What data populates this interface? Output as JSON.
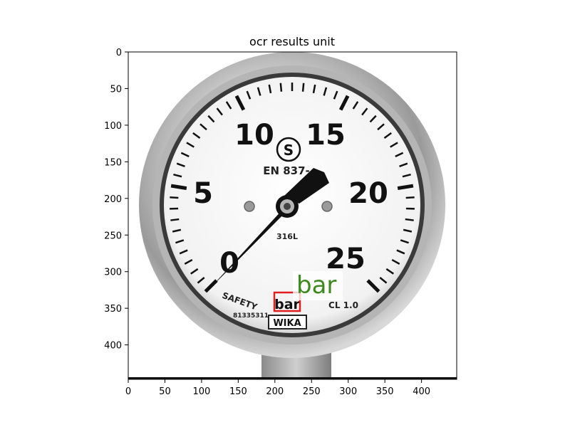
{
  "figure": {
    "title": "ocr results unit",
    "x_ticks": [
      "0",
      "50",
      "100",
      "150",
      "200",
      "250",
      "300",
      "350",
      "400"
    ],
    "y_ticks": [
      "0",
      "50",
      "100",
      "150",
      "200",
      "250",
      "300",
      "350",
      "400"
    ],
    "x_range": [
      0,
      448
    ],
    "y_range": [
      0,
      448
    ]
  },
  "gauge": {
    "scale_numbers": [
      "0",
      "5",
      "10",
      "15",
      "20",
      "25"
    ],
    "standard_mark": "S",
    "standard_text": "EN 837-",
    "material_text": "316L",
    "class_text": "CL 1.0",
    "safety_text": "SAFETY",
    "serial_text": "81335311",
    "brand_logo": "WIKA",
    "unit_label": "bar"
  },
  "ocr": {
    "detected_text": "bar",
    "box_color": "#e02020",
    "text_color": "#3c8a1e"
  }
}
